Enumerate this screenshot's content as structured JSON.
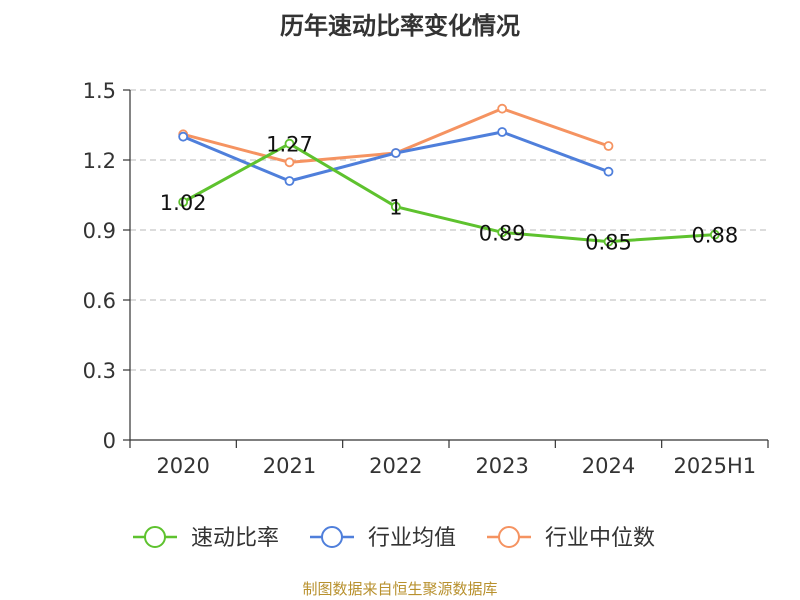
{
  "chart_data": {
    "type": "line",
    "title": "历年速动比率变化情况",
    "categories": [
      "2020",
      "2021",
      "2022",
      "2023",
      "2024",
      "2025H1"
    ],
    "yticks": [
      "0",
      "0.3",
      "0.6",
      "0.9",
      "1.2",
      "1.5"
    ],
    "ylim": [
      0,
      1.5
    ],
    "grid": true,
    "legend_position": "bottom",
    "series": [
      {
        "name": "速动比率",
        "color": "#5ec22e",
        "values": [
          1.02,
          1.27,
          1,
          0.89,
          0.85,
          0.88
        ],
        "labels": [
          "1.02",
          "1.27",
          "1",
          "0.89",
          "0.85",
          "0.88"
        ]
      },
      {
        "name": "行业均值",
        "color": "#4f7fdb",
        "values": [
          1.3,
          1.11,
          1.23,
          1.32,
          1.15,
          null
        ]
      },
      {
        "name": "行业中位数",
        "color": "#f59361",
        "values": [
          1.31,
          1.19,
          1.23,
          1.42,
          1.26,
          null
        ]
      }
    ]
  },
  "source": "制图数据来自恒生聚源数据库"
}
